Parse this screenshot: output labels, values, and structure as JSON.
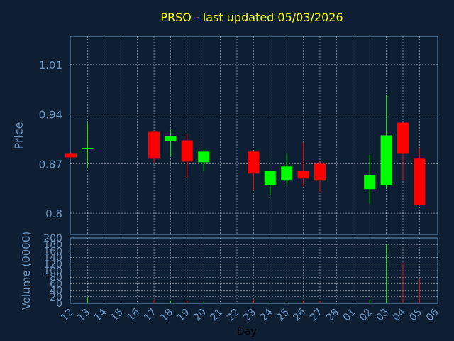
{
  "chart_data": {
    "type": "candlestick",
    "title": "PRSO - last updated 05/03/2026",
    "xlabel": "Day",
    "ylabel": "Price",
    "volume_ylabel": "Volume (0000)",
    "x_ticks": [
      "12",
      "13",
      "14",
      "15",
      "16",
      "17",
      "18",
      "19",
      "20",
      "21",
      "22",
      "23",
      "24",
      "25",
      "26",
      "27",
      "28",
      "01",
      "02",
      "03",
      "04",
      "05",
      "06"
    ],
    "price_ticks": [
      "0.8",
      "0.87",
      "0.94",
      "1.01"
    ],
    "price_tick_values": [
      0.8,
      0.87,
      0.94,
      1.01
    ],
    "ylim": [
      0.77,
      1.05
    ],
    "volume_ticks": [
      "0",
      "20",
      "40",
      "60",
      "80",
      "100",
      "120",
      "140",
      "160",
      "180",
      "200"
    ],
    "volume_tick_values": [
      0,
      20,
      40,
      60,
      80,
      100,
      120,
      140,
      160,
      180,
      200
    ],
    "volume_ylim": [
      0,
      200
    ],
    "grid": true,
    "colors": {
      "up": "#00ff00",
      "down": "#ff0000",
      "title": "#ffff00",
      "axis_text": "#6b93bd",
      "xlabel": "#000000"
    },
    "candles": [
      {
        "day": "12",
        "open": 0.884,
        "high": 0.886,
        "low": 0.879,
        "close": 0.879,
        "volume": 0
      },
      {
        "day": "13",
        "open": 0.891,
        "high": 0.928,
        "low": 0.864,
        "close": 0.892,
        "volume": 20
      },
      {
        "day": "17",
        "open": 0.915,
        "high": 0.916,
        "low": 0.871,
        "close": 0.877,
        "volume": 10
      },
      {
        "day": "18",
        "open": 0.902,
        "high": 0.918,
        "low": 0.88,
        "close": 0.909,
        "volume": 8
      },
      {
        "day": "19",
        "open": 0.903,
        "high": 0.912,
        "low": 0.85,
        "close": 0.873,
        "volume": 8
      },
      {
        "day": "20",
        "open": 0.872,
        "high": 0.888,
        "low": 0.86,
        "close": 0.887,
        "volume": 5
      },
      {
        "day": "23",
        "open": 0.887,
        "high": 0.888,
        "low": 0.832,
        "close": 0.856,
        "volume": 12
      },
      {
        "day": "24",
        "open": 0.84,
        "high": 0.86,
        "low": 0.826,
        "close": 0.86,
        "volume": 2
      },
      {
        "day": "25",
        "open": 0.846,
        "high": 0.884,
        "low": 0.84,
        "close": 0.866,
        "volume": 2
      },
      {
        "day": "26",
        "open": 0.86,
        "high": 0.9,
        "low": 0.838,
        "close": 0.849,
        "volume": 8
      },
      {
        "day": "27",
        "open": 0.87,
        "high": 0.87,
        "low": 0.83,
        "close": 0.846,
        "volume": 8
      },
      {
        "day": "02",
        "open": 0.834,
        "high": 0.883,
        "low": 0.813,
        "close": 0.854,
        "volume": 10
      },
      {
        "day": "03",
        "open": 0.84,
        "high": 0.967,
        "low": 0.834,
        "close": 0.91,
        "volume": 180
      },
      {
        "day": "04",
        "open": 0.928,
        "high": 0.928,
        "low": 0.846,
        "close": 0.884,
        "volume": 125
      },
      {
        "day": "05",
        "open": 0.877,
        "high": 0.892,
        "low": 0.81,
        "close": 0.811,
        "volume": 75
      }
    ]
  }
}
